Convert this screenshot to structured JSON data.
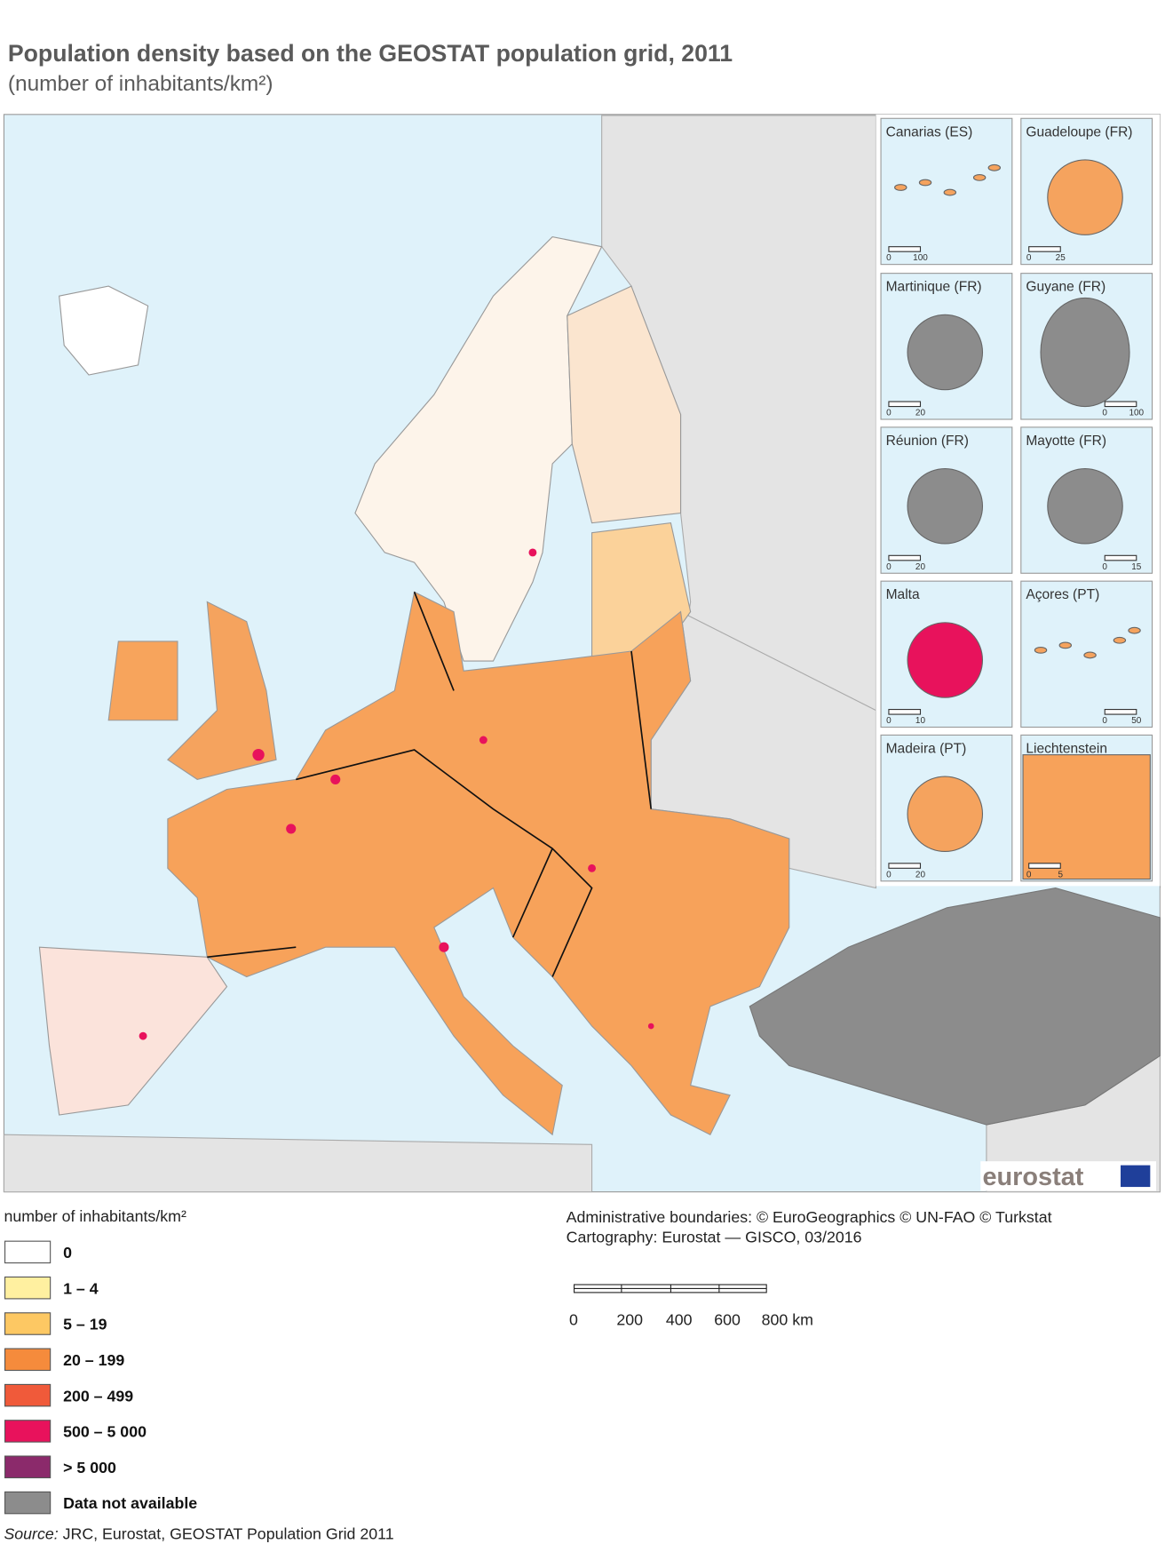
{
  "title": "Population density based on the GEOSTAT population grid, 2011",
  "subtitle": "(number of inhabitants/km²)",
  "insets": [
    {
      "label": "Canarias (ES)",
      "scale": [
        "0",
        "100"
      ]
    },
    {
      "label": "Guadeloupe (FR)",
      "scale": [
        "0",
        "25"
      ]
    },
    {
      "label": "Martinique (FR)",
      "scale": [
        "0",
        "20"
      ]
    },
    {
      "label": "Guyane (FR)",
      "scale": [
        "0",
        "100"
      ]
    },
    {
      "label": "Réunion (FR)",
      "scale": [
        "0",
        "20"
      ]
    },
    {
      "label": "Mayotte (FR)",
      "scale": [
        "0",
        "15"
      ]
    },
    {
      "label": "Malta",
      "scale": [
        "0",
        "10"
      ]
    },
    {
      "label": "Açores (PT)",
      "scale": [
        "0",
        "50"
      ]
    },
    {
      "label": "Madeira (PT)",
      "scale": [
        "0",
        "20"
      ]
    },
    {
      "label": "Liechtenstein",
      "scale": [
        "0",
        "5"
      ]
    }
  ],
  "logo": "eurostat",
  "legend": {
    "title": "number of inhabitants/km²",
    "items": [
      {
        "label": "0",
        "color": "#ffffff"
      },
      {
        "label": "1 – 4",
        "color": "#fff0a0"
      },
      {
        "label": "5 – 19",
        "color": "#fdc863"
      },
      {
        "label": "20 – 199",
        "color": "#f58b3c"
      },
      {
        "label": "200 – 499",
        "color": "#f05a3a"
      },
      {
        "label": "500 – 5 000",
        "color": "#e8125c"
      },
      {
        "label": "> 5 000",
        "color": "#8b2a6b"
      },
      {
        "label": "Data not available",
        "color": "#8c8c8c"
      }
    ]
  },
  "credits": [
    "Administrative boundaries: © EuroGeographics © UN-FAO © Turkstat",
    "Cartography: Eurostat — GISCO, 03/2016"
  ],
  "scale_bar": {
    "labels": [
      "0",
      "200",
      "400",
      "600",
      "800 km"
    ]
  },
  "source": {
    "label": "Source:",
    "text": " JRC, Eurostat, GEOSTAT Population Grid 2011"
  }
}
